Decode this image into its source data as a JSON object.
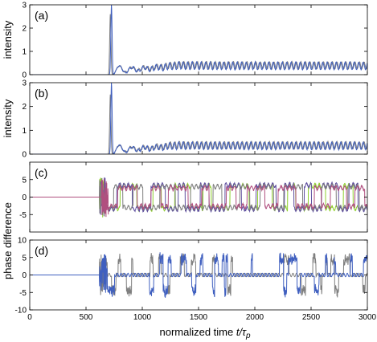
{
  "chart_data": {
    "type": "line",
    "panels": [
      {
        "tag": "(a)",
        "ylabel": "intensity",
        "ylim": [
          0,
          3
        ],
        "yticks": [
          0,
          1,
          2,
          3
        ],
        "xlim": [
          0,
          3000
        ],
        "xticks": [
          0,
          500,
          1000,
          1500,
          2000,
          2500,
          3000
        ],
        "show_xtick_labels": false,
        "series": [
          {
            "color": "#7f7f7f",
            "kind": "intensity",
            "onset": 700,
            "spike": 2.6,
            "osc_amp": 0.3,
            "base": 0.25,
            "period": 40
          },
          {
            "color": "#3f5fbf",
            "kind": "intensity",
            "onset": 710,
            "spike": 3.0,
            "osc_amp": 0.32,
            "base": 0.22,
            "period": 40
          }
        ]
      },
      {
        "tag": "(b)",
        "ylabel": "intensity",
        "ylim": [
          0,
          3
        ],
        "yticks": [
          0,
          1,
          2,
          3
        ],
        "xlim": [
          0,
          3000
        ],
        "xticks": [
          0,
          500,
          1000,
          1500,
          2000,
          2500,
          3000
        ],
        "show_xtick_labels": false,
        "series": [
          {
            "color": "#7f7f7f",
            "kind": "intensity",
            "onset": 700,
            "spike": 2.5,
            "osc_amp": 0.3,
            "base": 0.22,
            "period": 40
          },
          {
            "color": "#3f5fbf",
            "kind": "intensity",
            "onset": 710,
            "spike": 3.0,
            "osc_amp": 0.3,
            "base": 0.2,
            "period": 40
          }
        ]
      },
      {
        "tag": "(c)",
        "ylabel": "phase difference",
        "ylim": [
          -10,
          10
        ],
        "yticks": [
          -5,
          0,
          5
        ],
        "xlim": [
          0,
          3000
        ],
        "xticks": [
          0,
          500,
          1000,
          1500,
          2000,
          2500,
          3000
        ],
        "show_xtick_labels": false,
        "series": [
          {
            "color": "#8fcf2f",
            "kind": "phase-square",
            "onset": 620,
            "level": 3.2,
            "seed": 3
          },
          {
            "color": "#5f4f9f",
            "kind": "phase-square",
            "onset": 620,
            "level": 3.4,
            "seed": 7
          },
          {
            "color": "#7f7f7f",
            "kind": "phase-square",
            "onset": 620,
            "level": 3.0,
            "seed": 11
          },
          {
            "color": "#b04f7f",
            "kind": "phase-square",
            "onset": 640,
            "level": 2.6,
            "seed": 17
          }
        ]
      },
      {
        "tag": "(d)",
        "ylabel": "",
        "ylim": [
          -10,
          10
        ],
        "yticks": [
          -10,
          -5,
          0,
          5,
          10
        ],
        "xlim": [
          0,
          3000
        ],
        "xticks": [
          0,
          500,
          1000,
          1500,
          2000,
          2500,
          3000
        ],
        "show_xtick_labels": true,
        "series": [
          {
            "color": "#7f7f7f",
            "kind": "phase-spikes",
            "onset": 620,
            "seed": 5
          },
          {
            "color": "#3f5fbf",
            "kind": "phase-spikes",
            "onset": 620,
            "seed": 9
          }
        ]
      }
    ],
    "xlabel": "normalized time t/τp",
    "xlabel_main": "normalized time ",
    "xlabel_var": "t/τ",
    "xlabel_sub": "p",
    "shared_ylabel_cd": "phase difference",
    "grid": false
  }
}
